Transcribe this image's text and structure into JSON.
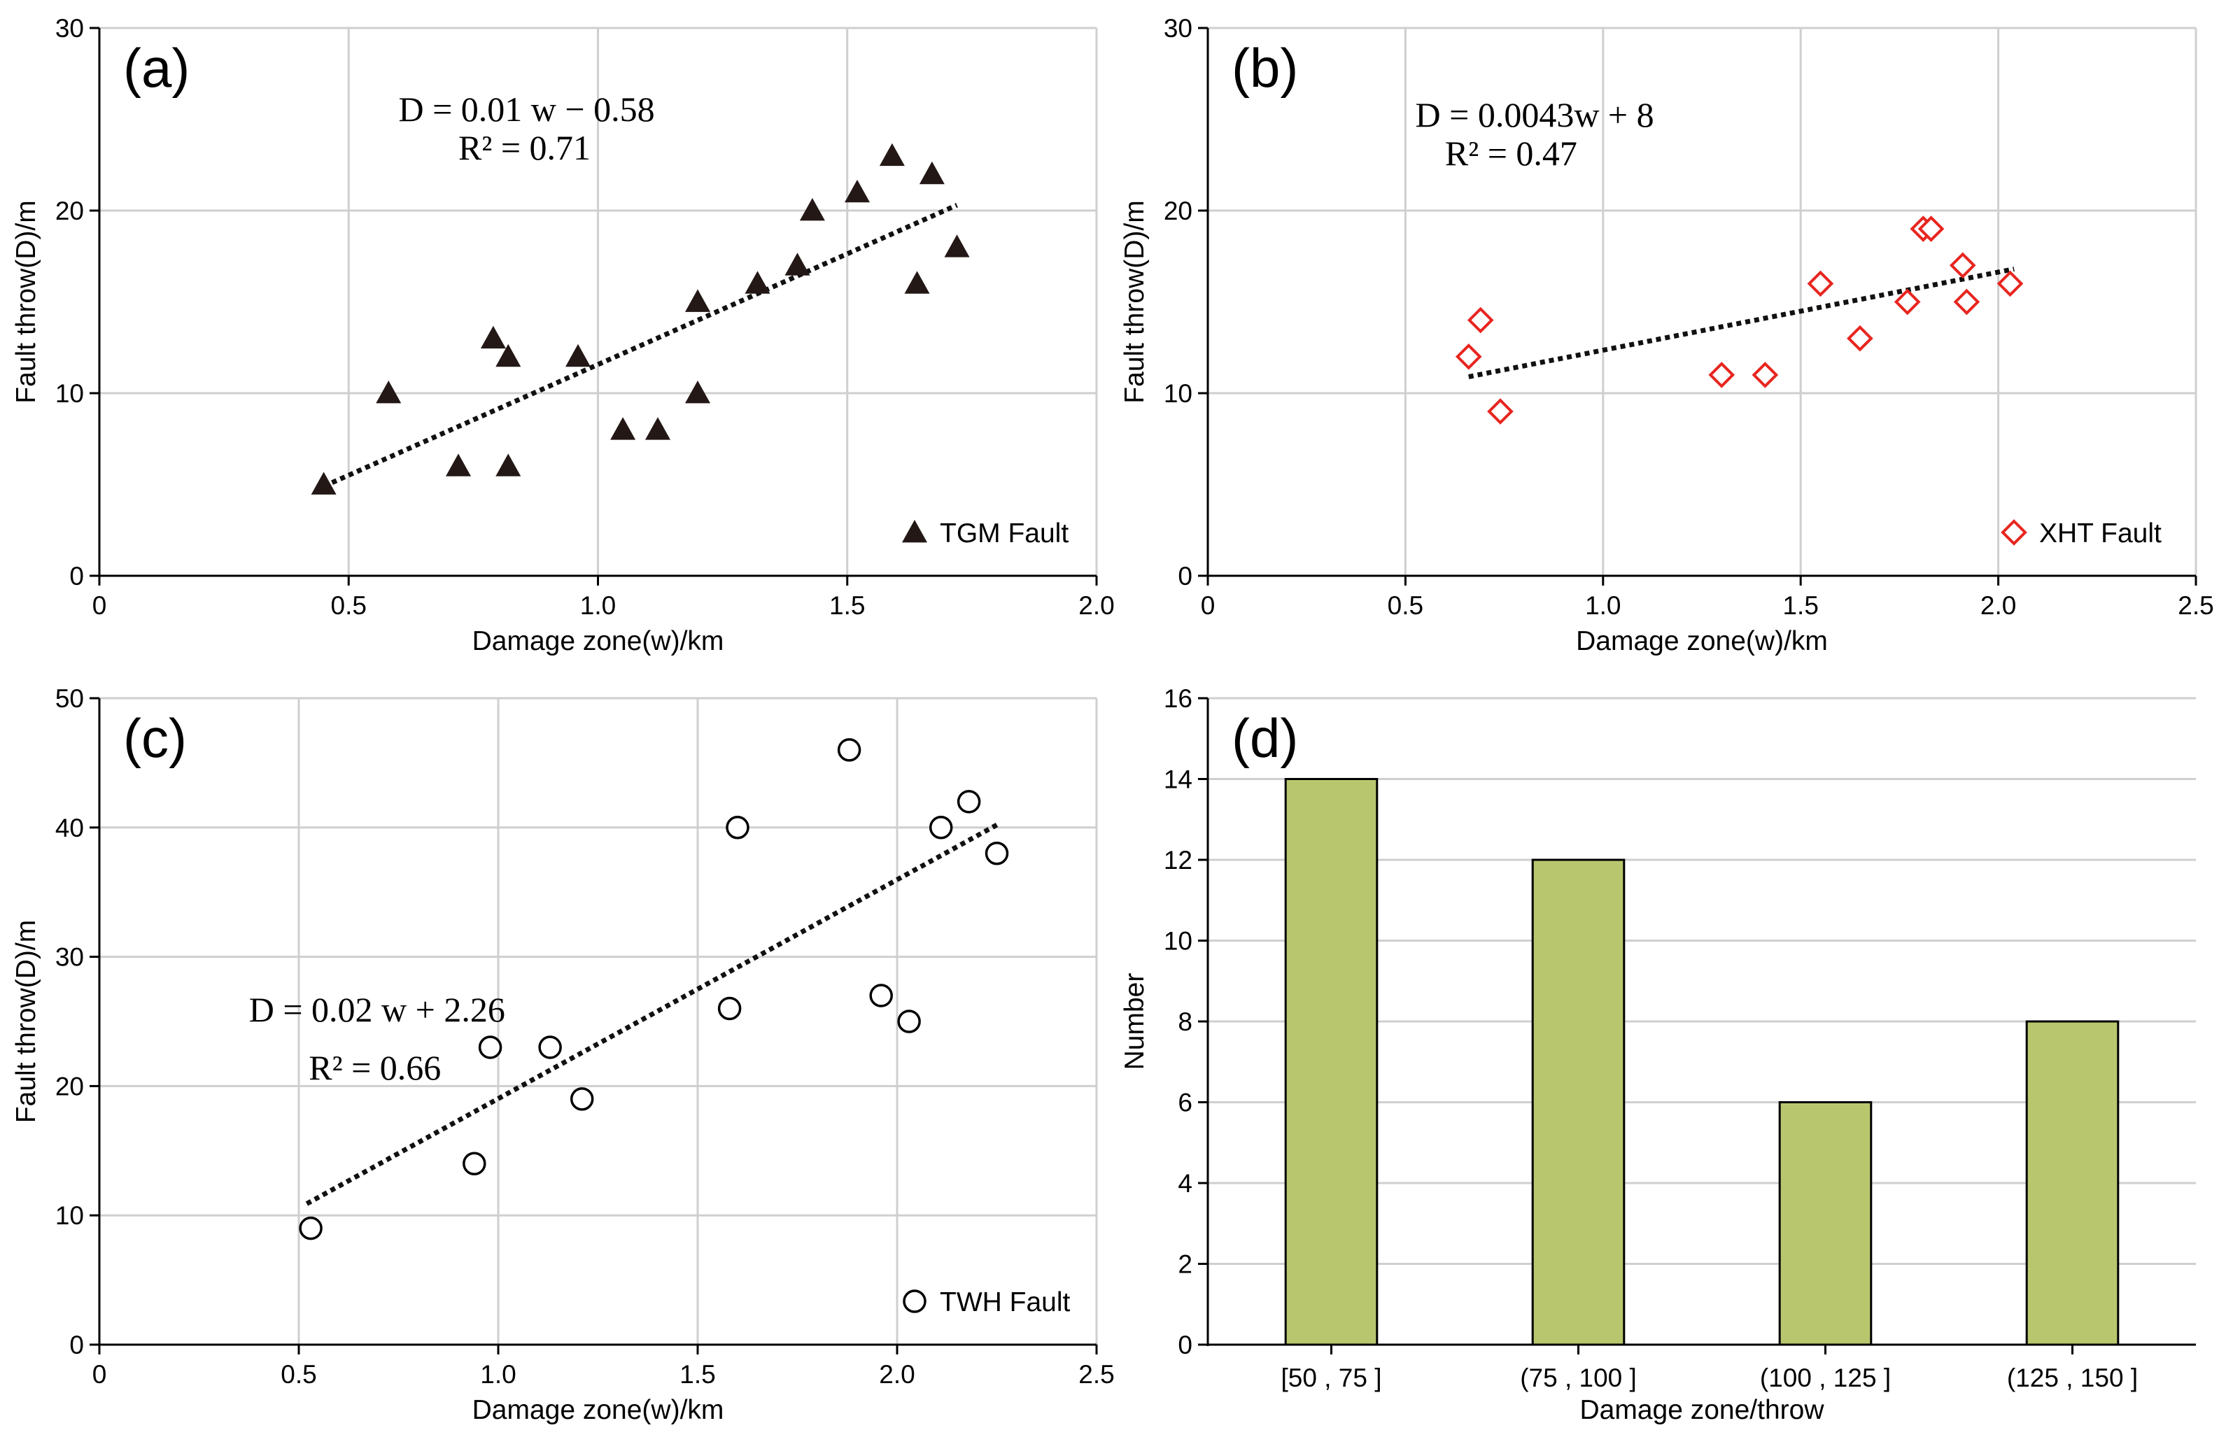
{
  "chart_data": [
    {
      "type": "scatter",
      "panel_label": "(a)",
      "xlabel": "Damage zone(w)/km",
      "ylabel": "Fault throw(D)/m",
      "xlim": [
        0,
        2.0
      ],
      "ylim": [
        0,
        30
      ],
      "xticks": [
        0,
        0.5,
        1.0,
        1.5,
        2.0
      ],
      "xtick_labels": [
        "0",
        "0.5",
        "1.0",
        "1.5",
        "2.0"
      ],
      "yticks": [
        0,
        10,
        20,
        30
      ],
      "ytick_labels": [
        "0",
        "10",
        "20",
        "30"
      ],
      "grid": true,
      "legend": "TGM Fault",
      "legend_position": "bottom-right",
      "marker": "triangle",
      "marker_color": "#231815",
      "equation": "D = 0.01 w − 0.58",
      "r2": "R² = 0.71",
      "trendline": {
        "x": [
          0.45,
          1.72
        ],
        "y": [
          4.9,
          20.3
        ]
      },
      "points": {
        "x": [
          0.45,
          0.58,
          0.72,
          0.79,
          0.82,
          0.82,
          0.96,
          1.05,
          1.12,
          1.2,
          1.2,
          1.32,
          1.4,
          1.43,
          1.52,
          1.59,
          1.64,
          1.67,
          1.72
        ],
        "y": [
          5,
          10,
          6,
          13,
          12,
          6,
          12,
          8,
          8,
          15,
          10,
          16,
          17,
          20,
          21,
          23,
          16,
          22,
          18
        ]
      }
    },
    {
      "type": "scatter",
      "panel_label": "(b)",
      "xlabel": "Damage zone(w)/km",
      "ylabel": "Fault throw(D)/m",
      "xlim": [
        0,
        2.5
      ],
      "ylim": [
        0,
        30
      ],
      "xticks": [
        0,
        0.5,
        1.0,
        1.5,
        2.0,
        2.5
      ],
      "xtick_labels": [
        "0",
        "0.5",
        "1.0",
        "1.5",
        "2.0",
        "2.5"
      ],
      "yticks": [
        0,
        10,
        20,
        30
      ],
      "ytick_labels": [
        "0",
        "10",
        "20",
        "30"
      ],
      "grid": true,
      "legend": "XHT Fault",
      "legend_position": "bottom-right",
      "marker": "diamond",
      "marker_color": "#e8251f",
      "equation": "D = 0.0043w + 8",
      "r2": "R² = 0.47",
      "trendline": {
        "x": [
          0.66,
          2.04
        ],
        "y": [
          10.9,
          16.8
        ]
      },
      "points": {
        "x": [
          0.66,
          0.69,
          0.74,
          1.3,
          1.41,
          1.55,
          1.65,
          1.77,
          1.81,
          1.83,
          1.91,
          1.92,
          2.03
        ],
        "y": [
          12,
          14,
          9,
          11,
          11,
          16,
          13,
          15,
          19,
          19,
          17,
          15,
          16
        ]
      }
    },
    {
      "type": "scatter",
      "panel_label": "(c)",
      "xlabel": "Damage zone(w)/km",
      "ylabel": "Fault throw(D)/m",
      "xlim": [
        0,
        2.5
      ],
      "ylim": [
        0,
        50
      ],
      "xticks": [
        0,
        0.5,
        1.0,
        1.5,
        2.0,
        2.5
      ],
      "xtick_labels": [
        "0",
        "0.5",
        "1.0",
        "1.5",
        "2.0",
        "2.5"
      ],
      "yticks": [
        0,
        10,
        20,
        30,
        40,
        50
      ],
      "ytick_labels": [
        "0",
        "10",
        "20",
        "30",
        "40",
        "50"
      ],
      "grid": true,
      "legend": "TWH Fault",
      "legend_position": "bottom-right",
      "marker": "circle",
      "marker_color": "#000000",
      "equation": "D = 0.02 w + 2.26",
      "r2": "R² = 0.66",
      "trendline": {
        "x": [
          0.52,
          2.25
        ],
        "y": [
          10.9,
          40.2
        ]
      },
      "points": {
        "x": [
          0.53,
          0.94,
          0.98,
          1.13,
          1.21,
          1.58,
          1.6,
          1.88,
          1.96,
          2.03,
          2.11,
          2.18,
          2.25
        ],
        "y": [
          9,
          14,
          23,
          23,
          19,
          26,
          40,
          46,
          27,
          25,
          40,
          42,
          38
        ]
      }
    },
    {
      "type": "bar",
      "panel_label": "(d)",
      "xlabel": "Damage zone/throw",
      "ylabel": "Number",
      "categories": [
        "[50 , 75 ]",
        "(75 , 100 ]",
        "(100 , 125 ]",
        "(125 , 150 ]"
      ],
      "values": [
        14,
        12,
        6,
        8
      ],
      "ylim": [
        0,
        16
      ],
      "yticks": [
        0,
        2,
        4,
        6,
        8,
        10,
        12,
        14,
        16
      ],
      "ytick_labels": [
        "0",
        "2",
        "4",
        "6",
        "8",
        "10",
        "12",
        "14",
        "16"
      ],
      "grid": true,
      "bar_color": "#b8c76e"
    }
  ]
}
